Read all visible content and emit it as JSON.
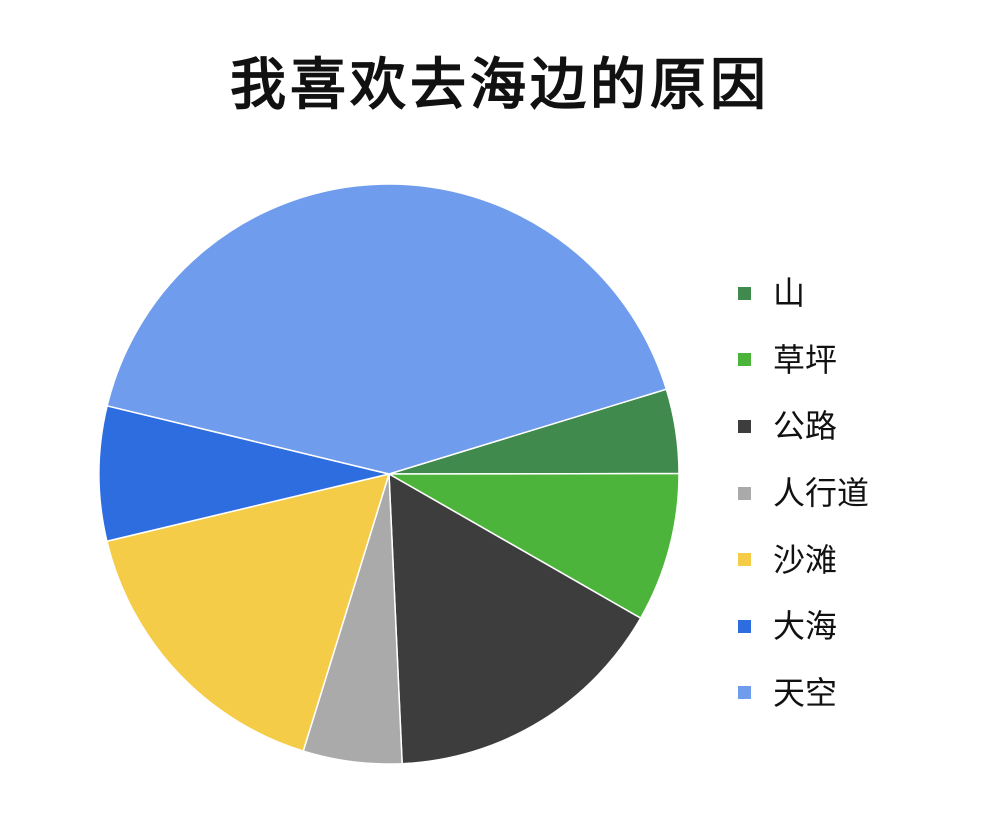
{
  "chart_data": {
    "type": "pie",
    "title": "我喜欢去海边的原因",
    "slices": [
      {
        "label": "山",
        "value": 4.7,
        "color": "#3f8a4c"
      },
      {
        "label": "草坪",
        "value": 8.3,
        "color": "#4cb43a"
      },
      {
        "label": "公路",
        "value": 16.0,
        "color": "#3d3d3d"
      },
      {
        "label": "人行道",
        "value": 5.5,
        "color": "#aaaaaa"
      },
      {
        "label": "沙滩",
        "value": 16.5,
        "color": "#f5cc48"
      },
      {
        "label": "大海",
        "value": 7.5,
        "color": "#2d6de0"
      },
      {
        "label": "天空",
        "value": 41.5,
        "color": "#6f9cec"
      }
    ],
    "legend_position": "right"
  }
}
